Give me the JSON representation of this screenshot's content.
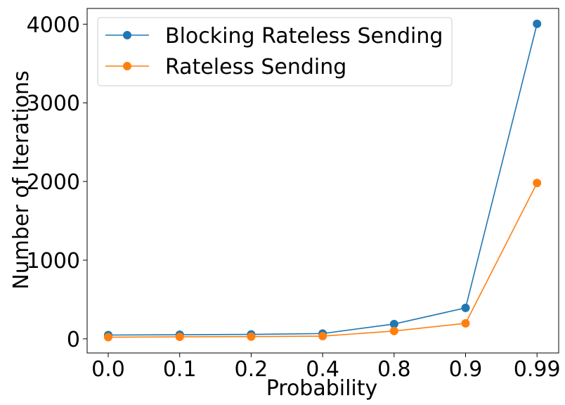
{
  "chart_data": {
    "type": "line",
    "title": "",
    "xlabel": "Probability",
    "ylabel": "Number of Iterations",
    "categories": [
      "0.0",
      "0.1",
      "0.2",
      "0.4",
      "0.8",
      "0.9",
      "0.99"
    ],
    "yticks": [
      "0",
      "1000",
      "2000",
      "3000",
      "4000"
    ],
    "ylim": [
      -180,
      4200
    ],
    "grid": false,
    "legend_position": "top-left",
    "series": [
      {
        "name": "Blocking Rateless Sending",
        "color": "#1f77b4",
        "values": [
          48,
          52,
          56,
          67,
          188,
          393,
          4004
        ]
      },
      {
        "name": "Rateless Sending",
        "color": "#ff7f0e",
        "values": [
          21,
          25,
          28,
          34,
          99,
          197,
          1981
        ]
      }
    ]
  }
}
